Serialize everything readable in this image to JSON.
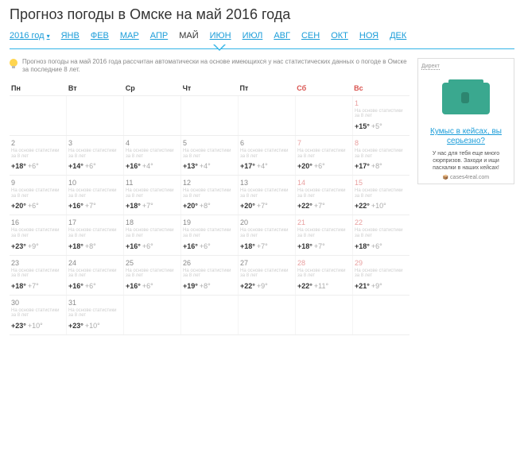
{
  "title": "Прогноз погоды в Омске на май 2016 года",
  "year": "2016 год",
  "months": [
    {
      "label": "ЯНВ",
      "active": false
    },
    {
      "label": "ФЕВ",
      "active": false
    },
    {
      "label": "МАР",
      "active": false
    },
    {
      "label": "АПР",
      "active": false
    },
    {
      "label": "МАЙ",
      "active": true
    },
    {
      "label": "ИЮН",
      "active": false
    },
    {
      "label": "ИЮЛ",
      "active": false
    },
    {
      "label": "АВГ",
      "active": false
    },
    {
      "label": "СЕН",
      "active": false
    },
    {
      "label": "ОКТ",
      "active": false
    },
    {
      "label": "НОЯ",
      "active": false
    },
    {
      "label": "ДЕК",
      "active": false
    }
  ],
  "tip": "Прогноз погоды на май 2016 года рассчитан автоматически на основе имеющихся у нас статистических данных о погоде в Омске за последние 8 лет.",
  "weekdays": [
    {
      "label": "Пн",
      "we": false
    },
    {
      "label": "Вт",
      "we": false
    },
    {
      "label": "Ср",
      "we": false
    },
    {
      "label": "Чт",
      "we": false
    },
    {
      "label": "Пт",
      "we": false
    },
    {
      "label": "Сб",
      "we": true
    },
    {
      "label": "Вс",
      "we": true
    }
  ],
  "stat_note": "На основе статистики за 8 лет",
  "weeks": [
    [
      {
        "empty": true
      },
      {
        "empty": true
      },
      {
        "empty": true
      },
      {
        "empty": true
      },
      {
        "empty": true
      },
      {
        "empty": true
      },
      {
        "day": "1",
        "we": true,
        "hi": "+15",
        "lo": "+5"
      }
    ],
    [
      {
        "day": "2",
        "hi": "+18",
        "lo": "+6"
      },
      {
        "day": "3",
        "hi": "+14",
        "lo": "+6"
      },
      {
        "day": "4",
        "hi": "+16",
        "lo": "+4"
      },
      {
        "day": "5",
        "hi": "+13",
        "lo": "+4"
      },
      {
        "day": "6",
        "hi": "+17",
        "lo": "+4"
      },
      {
        "day": "7",
        "we": true,
        "hi": "+20",
        "lo": "+6"
      },
      {
        "day": "8",
        "we": true,
        "hi": "+17",
        "lo": "+8"
      }
    ],
    [
      {
        "day": "9",
        "hi": "+20",
        "lo": "+6"
      },
      {
        "day": "10",
        "hi": "+16",
        "lo": "+7"
      },
      {
        "day": "11",
        "hi": "+18",
        "lo": "+7"
      },
      {
        "day": "12",
        "hi": "+20",
        "lo": "+8"
      },
      {
        "day": "13",
        "hi": "+20",
        "lo": "+7"
      },
      {
        "day": "14",
        "we": true,
        "hi": "+22",
        "lo": "+7"
      },
      {
        "day": "15",
        "we": true,
        "hi": "+22",
        "lo": "+10"
      }
    ],
    [
      {
        "day": "16",
        "hi": "+23",
        "lo": "+9"
      },
      {
        "day": "17",
        "hi": "+18",
        "lo": "+8"
      },
      {
        "day": "18",
        "hi": "+16",
        "lo": "+6"
      },
      {
        "day": "19",
        "hi": "+16",
        "lo": "+6"
      },
      {
        "day": "20",
        "hi": "+18",
        "lo": "+7"
      },
      {
        "day": "21",
        "we": true,
        "hi": "+18",
        "lo": "+7"
      },
      {
        "day": "22",
        "we": true,
        "hi": "+18",
        "lo": "+6"
      }
    ],
    [
      {
        "day": "23",
        "hi": "+18",
        "lo": "+7"
      },
      {
        "day": "24",
        "hi": "+16",
        "lo": "+6"
      },
      {
        "day": "25",
        "hi": "+16",
        "lo": "+6"
      },
      {
        "day": "26",
        "hi": "+19",
        "lo": "+8"
      },
      {
        "day": "27",
        "hi": "+22",
        "lo": "+9"
      },
      {
        "day": "28",
        "we": true,
        "hi": "+22",
        "lo": "+11"
      },
      {
        "day": "29",
        "we": true,
        "hi": "+21",
        "lo": "+9"
      }
    ],
    [
      {
        "day": "30",
        "hi": "+23",
        "lo": "+10"
      },
      {
        "day": "31",
        "hi": "+23",
        "lo": "+10"
      },
      {
        "empty": true
      },
      {
        "empty": true
      },
      {
        "empty": true
      },
      {
        "empty": true
      },
      {
        "empty": true
      }
    ]
  ],
  "ad": {
    "label": "Директ",
    "title": "Кумыс в кейсах, вы серьезно?",
    "desc": "У нас для тебя еще много сюрпризов. Заходи и ищи пасхалки в наших кейсах!",
    "url": "cases4real.com"
  }
}
